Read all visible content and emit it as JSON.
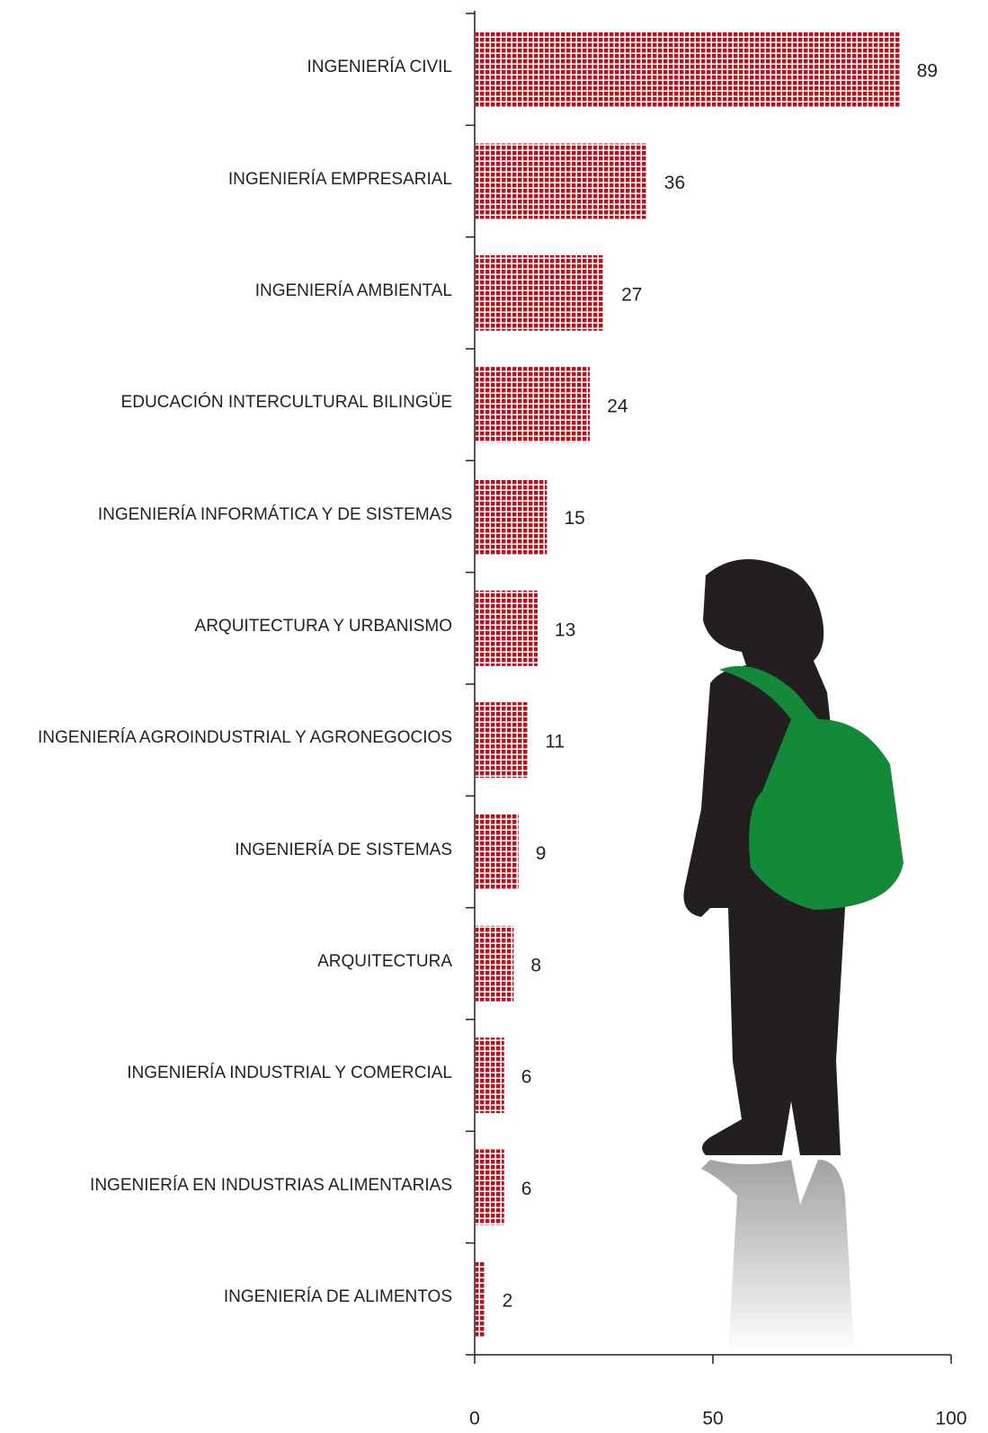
{
  "chart_data": {
    "type": "hbar",
    "categories": [
      "INGENIERÍA CIVIL",
      "INGENIERÍA EMPRESARIAL",
      "INGENIERÍA AMBIENTAL",
      "EDUCACIÓN INTERCULTURAL BILINGÜE",
      "INGENIERÍA INFORMÁTICA Y DE SISTEMAS",
      "ARQUITECTURA Y URBANISMO",
      "INGENIERÍA AGROINDUSTRIAL Y AGRONEGOCIOS",
      "INGENIERÍA DE SISTEMAS",
      "ARQUITECTURA",
      "INGENIERÍA INDUSTRIAL Y COMERCIAL",
      "INGENIERÍA EN INDUSTRIAS ALIMENTARIAS",
      "INGENIERÍA DE ALIMENTOS"
    ],
    "values": [
      89,
      36,
      27,
      24,
      15,
      13,
      11,
      9,
      8,
      6,
      6,
      2
    ],
    "color": "#b0141e",
    "xlim": [
      0,
      100
    ],
    "xticks": [
      0,
      50,
      100
    ]
  }
}
